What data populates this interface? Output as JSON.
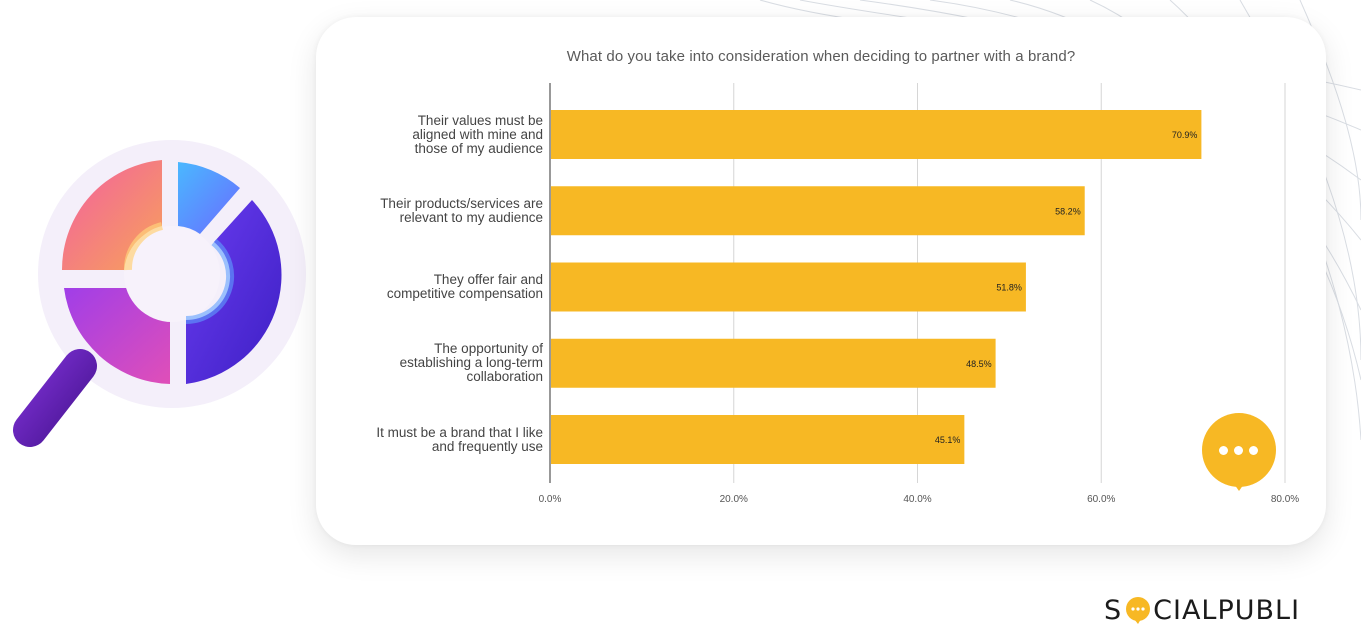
{
  "chart_data": {
    "type": "bar",
    "orientation": "horizontal",
    "title": "What do you take into consideration when deciding to partner with a brand?",
    "categories": [
      "Their values must be aligned with mine and those of my audience",
      "Their products/services are relevant to my audience",
      "They offer fair and competitive compensation",
      "The opportunity of establishing a long-term collaboration",
      "It must be a brand that I like and frequently use"
    ],
    "category_lines": [
      [
        "Their values must be",
        "aligned with mine and",
        "those of my audience"
      ],
      [
        "Their products/services are",
        "relevant to my audience"
      ],
      [
        "They offer fair and",
        "competitive compensation"
      ],
      [
        "The opportunity of",
        "establishing a long-term",
        "collaboration"
      ],
      [
        "It must be a brand that I like",
        "and frequently use"
      ]
    ],
    "values": [
      70.9,
      58.2,
      51.8,
      48.5,
      45.1
    ],
    "value_labels": [
      "70.9%",
      "58.2%",
      "51.8%",
      "48.5%",
      "45.1%"
    ],
    "xlim": [
      0,
      80
    ],
    "x_ticks": [
      0,
      20,
      40,
      60,
      80
    ],
    "x_tick_labels": [
      "0.0%",
      "20.0%",
      "40.0%",
      "60.0%",
      "80.0%"
    ],
    "xlabel": "",
    "ylabel": "",
    "grid": true,
    "bar_color": "#f7b824"
  },
  "brand": {
    "logo_letters": {
      "before": "S",
      "after": "CIALPUBLI"
    },
    "logo_text": "SOCIALPUBLI",
    "accent_color": "#f7b824"
  },
  "decorations": {
    "chat_icon": "chat-bubble-icon",
    "magnifier_icon": "magnifier-donut-icon"
  }
}
